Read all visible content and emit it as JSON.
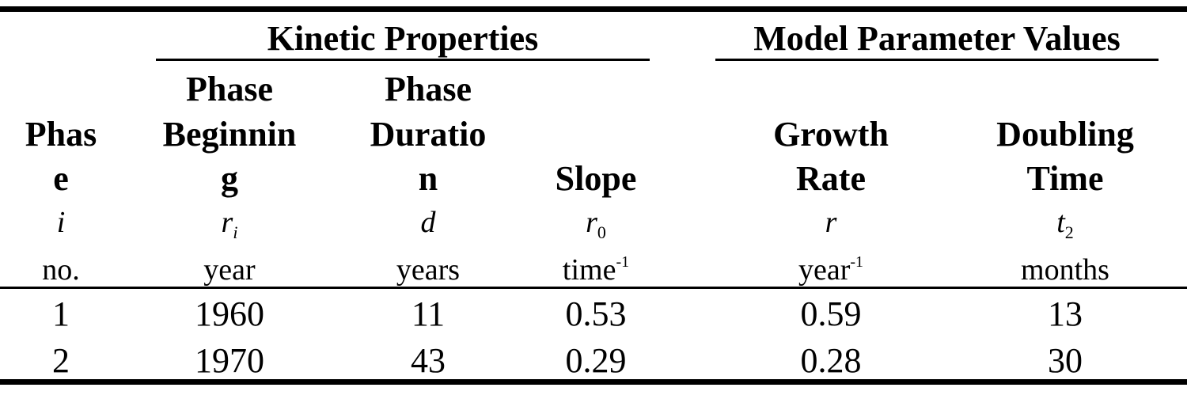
{
  "groups": {
    "kinetic": "Kinetic Properties",
    "model": "Model Parameter Values"
  },
  "columns": [
    {
      "header_lines": [
        "Phas",
        "e"
      ],
      "symbol": "i",
      "symbol_sub": "",
      "unit": "no.",
      "unit_sup": ""
    },
    {
      "header_lines": [
        "Phase",
        "Beginnin",
        "g"
      ],
      "symbol": "r",
      "symbol_sub": "i",
      "unit": "year",
      "unit_sup": ""
    },
    {
      "header_lines": [
        "Phase",
        "Duratio",
        "n"
      ],
      "symbol": "d",
      "symbol_sub": "",
      "unit": "years",
      "unit_sup": ""
    },
    {
      "header_lines": [
        "Slope"
      ],
      "symbol": "r",
      "symbol_sub": "0",
      "unit": "time",
      "unit_sup": "-1"
    },
    {
      "header_lines": [
        "Growth",
        "Rate"
      ],
      "symbol": "r",
      "symbol_sub": "",
      "unit": "year",
      "unit_sup": "-1"
    },
    {
      "header_lines": [
        "Doubling",
        "Time"
      ],
      "symbol": "t",
      "symbol_sub": "2",
      "unit": "months",
      "unit_sup": ""
    }
  ],
  "rows": [
    [
      "1",
      "1960",
      "11",
      "0.53",
      "0.59",
      "13"
    ],
    [
      "2",
      "1970",
      "43",
      "0.29",
      "0.28",
      "30"
    ]
  ]
}
